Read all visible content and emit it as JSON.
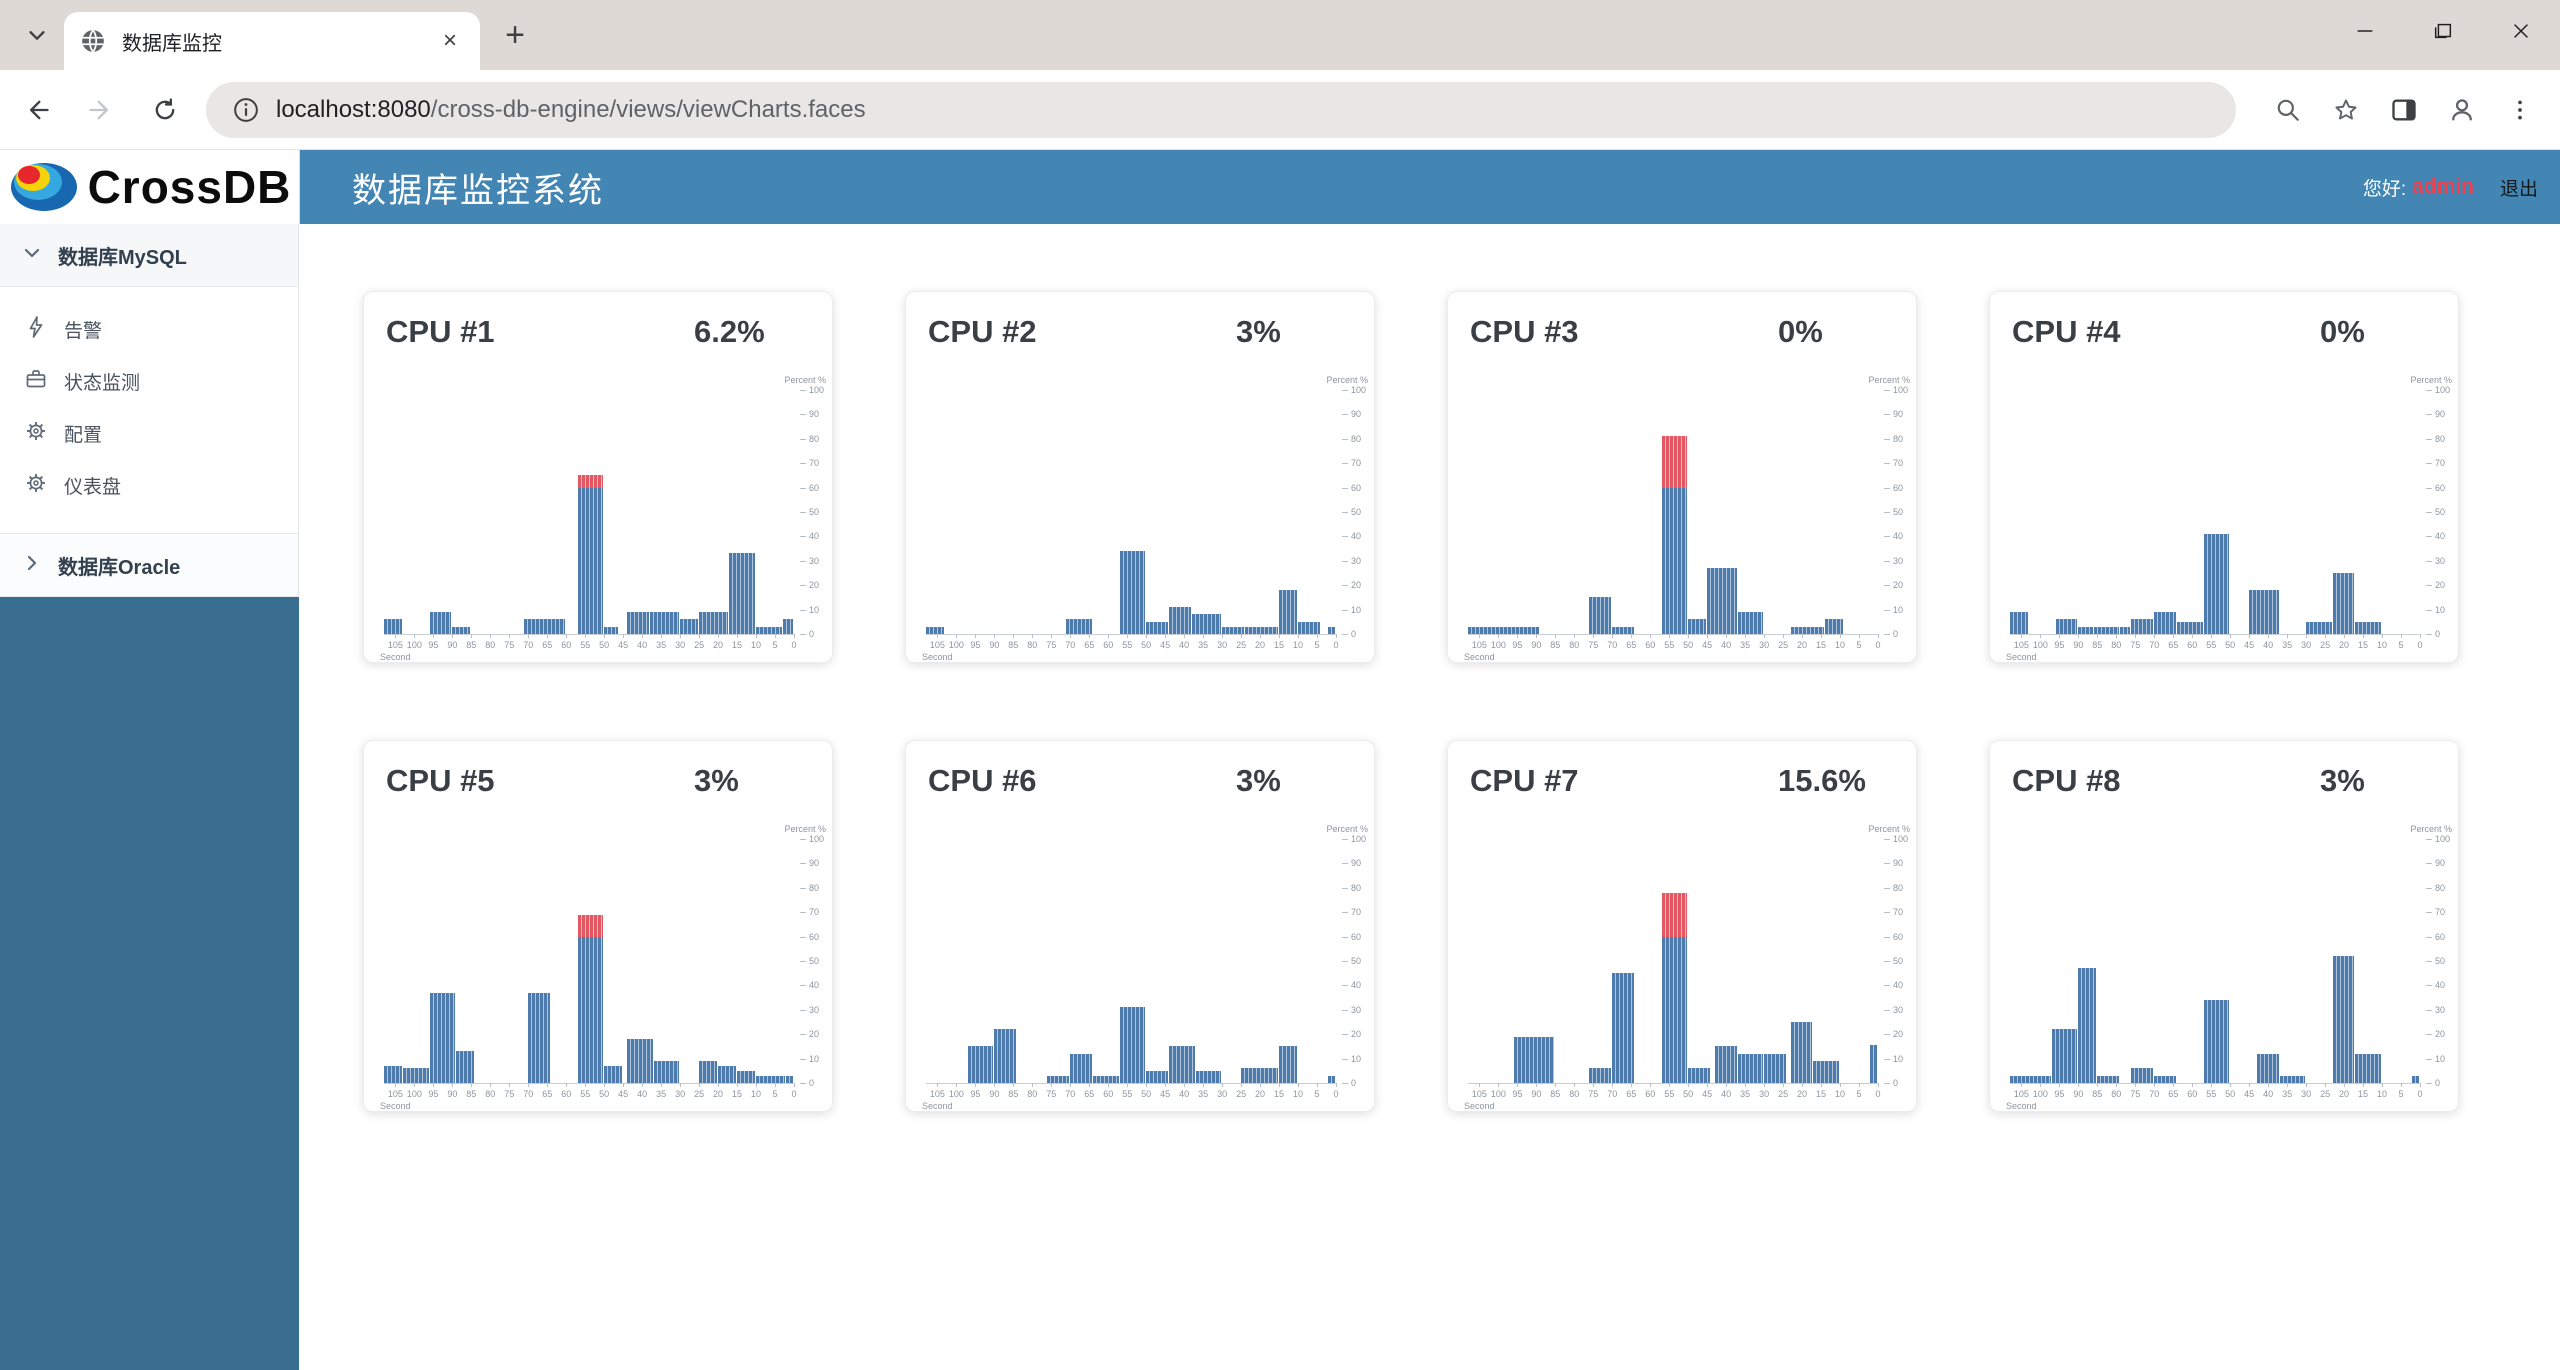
{
  "browser": {
    "tab_title": "数据库监控",
    "url_host": "localhost:8080",
    "url_path": "/cross-db-engine/views/viewCharts.faces",
    "new_tab_label": "+",
    "minimize_label": "–",
    "close_label": "×"
  },
  "header": {
    "logo_text": "CrossDB",
    "title": "数据库监控系统",
    "greeting_label": "您好:",
    "username": "admin",
    "logout_label": "退出"
  },
  "sidebar": {
    "groups": [
      {
        "label": "数据库MySQL",
        "expanded": true,
        "items": [
          {
            "icon": "lightning-icon",
            "label": "告警"
          },
          {
            "icon": "briefcase-icon",
            "label": "状态监测"
          },
          {
            "icon": "gear-icon",
            "label": "配置"
          },
          {
            "icon": "gear-icon",
            "label": "仪表盘"
          }
        ]
      },
      {
        "label": "数据库Oracle",
        "expanded": false,
        "items": []
      }
    ]
  },
  "colors": {
    "header_blue": "#4386b4",
    "sidebar_dark": "#3a6e90",
    "bar_blue": "#4d7bac",
    "bar_red": "#e25863",
    "username_red": "#f0414d"
  },
  "chart_data": [
    {
      "type": "bar",
      "title": "CPU #1",
      "current_value": "6.2%",
      "xlabel": "Second",
      "ylabel": "Percent %",
      "ylim": [
        0,
        100
      ],
      "threshold": 60,
      "x_ticks": [
        105,
        100,
        95,
        90,
        85,
        80,
        75,
        70,
        65,
        60,
        55,
        50,
        45,
        40,
        35,
        30,
        25,
        20,
        15,
        10,
        5,
        0
      ],
      "y_ticks": [
        0,
        10,
        20,
        30,
        40,
        50,
        60,
        70,
        80,
        90,
        100
      ],
      "x_range_seconds_ago": [
        108,
        0
      ],
      "bars": [
        {
          "from_s": 108,
          "to_s": 103,
          "value": 6
        },
        {
          "from_s": 96,
          "to_s": 90,
          "value": 9
        },
        {
          "from_s": 90,
          "to_s": 85,
          "value": 3
        },
        {
          "from_s": 71,
          "to_s": 60,
          "value": 6
        },
        {
          "from_s": 57,
          "to_s": 50,
          "value": 65
        },
        {
          "from_s": 50,
          "to_s": 46,
          "value": 3
        },
        {
          "from_s": 44,
          "to_s": 38,
          "value": 9
        },
        {
          "from_s": 38,
          "to_s": 30,
          "value": 9
        },
        {
          "from_s": 30,
          "to_s": 25,
          "value": 6
        },
        {
          "from_s": 25,
          "to_s": 17,
          "value": 9
        },
        {
          "from_s": 17,
          "to_s": 10,
          "value": 33
        },
        {
          "from_s": 10,
          "to_s": 3,
          "value": 3
        },
        {
          "from_s": 3,
          "to_s": 0,
          "value": 6
        }
      ]
    },
    {
      "type": "bar",
      "title": "CPU #2",
      "current_value": "3%",
      "xlabel": "Second",
      "ylabel": "Percent %",
      "ylim": [
        0,
        100
      ],
      "threshold": 60,
      "x_ticks": [
        105,
        100,
        95,
        90,
        85,
        80,
        75,
        70,
        65,
        60,
        55,
        50,
        45,
        40,
        35,
        30,
        25,
        20,
        15,
        10,
        5,
        0
      ],
      "y_ticks": [
        0,
        10,
        20,
        30,
        40,
        50,
        60,
        70,
        80,
        90,
        100
      ],
      "x_range_seconds_ago": [
        108,
        0
      ],
      "bars": [
        {
          "from_s": 108,
          "to_s": 103,
          "value": 3
        },
        {
          "from_s": 71,
          "to_s": 64,
          "value": 6
        },
        {
          "from_s": 57,
          "to_s": 50,
          "value": 34
        },
        {
          "from_s": 50,
          "to_s": 44,
          "value": 5
        },
        {
          "from_s": 44,
          "to_s": 38,
          "value": 11
        },
        {
          "from_s": 38,
          "to_s": 30,
          "value": 8
        },
        {
          "from_s": 30,
          "to_s": 24,
          "value": 3
        },
        {
          "from_s": 24,
          "to_s": 15,
          "value": 3
        },
        {
          "from_s": 15,
          "to_s": 10,
          "value": 18
        },
        {
          "from_s": 10,
          "to_s": 4,
          "value": 5
        },
        {
          "from_s": 2,
          "to_s": 0,
          "value": 3
        }
      ]
    },
    {
      "type": "bar",
      "title": "CPU #3",
      "current_value": "0%",
      "xlabel": "Second",
      "ylabel": "Percent %",
      "ylim": [
        0,
        100
      ],
      "threshold": 60,
      "x_ticks": [
        105,
        100,
        95,
        90,
        85,
        80,
        75,
        70,
        65,
        60,
        55,
        50,
        45,
        40,
        35,
        30,
        25,
        20,
        15,
        10,
        5,
        0
      ],
      "y_ticks": [
        0,
        10,
        20,
        30,
        40,
        50,
        60,
        70,
        80,
        90,
        100
      ],
      "x_range_seconds_ago": [
        108,
        0
      ],
      "bars": [
        {
          "from_s": 108,
          "to_s": 89,
          "value": 3
        },
        {
          "from_s": 76,
          "to_s": 70,
          "value": 15
        },
        {
          "from_s": 70,
          "to_s": 64,
          "value": 3
        },
        {
          "from_s": 57,
          "to_s": 50,
          "value": 81
        },
        {
          "from_s": 50,
          "to_s": 45,
          "value": 6
        },
        {
          "from_s": 45,
          "to_s": 37,
          "value": 27
        },
        {
          "from_s": 37,
          "to_s": 30,
          "value": 9
        },
        {
          "from_s": 23,
          "to_s": 14,
          "value": 3
        },
        {
          "from_s": 14,
          "to_s": 9,
          "value": 6
        }
      ]
    },
    {
      "type": "bar",
      "title": "CPU #4",
      "current_value": "0%",
      "xlabel": "Second",
      "ylabel": "Percent %",
      "ylim": [
        0,
        100
      ],
      "threshold": 60,
      "x_ticks": [
        105,
        100,
        95,
        90,
        85,
        80,
        75,
        70,
        65,
        60,
        55,
        50,
        45,
        40,
        35,
        30,
        25,
        20,
        15,
        10,
        5,
        0
      ],
      "y_ticks": [
        0,
        10,
        20,
        30,
        40,
        50,
        60,
        70,
        80,
        90,
        100
      ],
      "x_range_seconds_ago": [
        108,
        0
      ],
      "bars": [
        {
          "from_s": 108,
          "to_s": 103,
          "value": 9
        },
        {
          "from_s": 96,
          "to_s": 90,
          "value": 6
        },
        {
          "from_s": 90,
          "to_s": 86,
          "value": 3
        },
        {
          "from_s": 86,
          "to_s": 79,
          "value": 3
        },
        {
          "from_s": 79,
          "to_s": 76,
          "value": 3
        },
        {
          "from_s": 76,
          "to_s": 70,
          "value": 6
        },
        {
          "from_s": 70,
          "to_s": 64,
          "value": 9
        },
        {
          "from_s": 64,
          "to_s": 57,
          "value": 5
        },
        {
          "from_s": 57,
          "to_s": 50,
          "value": 41
        },
        {
          "from_s": 45,
          "to_s": 37,
          "value": 18
        },
        {
          "from_s": 30,
          "to_s": 23,
          "value": 5
        },
        {
          "from_s": 23,
          "to_s": 17,
          "value": 25
        },
        {
          "from_s": 17,
          "to_s": 10,
          "value": 5
        }
      ]
    },
    {
      "type": "bar",
      "title": "CPU #5",
      "current_value": "3%",
      "xlabel": "Second",
      "ylabel": "Percent %",
      "ylim": [
        0,
        100
      ],
      "threshold": 60,
      "x_ticks": [
        105,
        100,
        95,
        90,
        85,
        80,
        75,
        70,
        65,
        60,
        55,
        50,
        45,
        40,
        35,
        30,
        25,
        20,
        15,
        10,
        5,
        0
      ],
      "y_ticks": [
        0,
        10,
        20,
        30,
        40,
        50,
        60,
        70,
        80,
        90,
        100
      ],
      "x_range_seconds_ago": [
        108,
        0
      ],
      "bars": [
        {
          "from_s": 108,
          "to_s": 103,
          "value": 7
        },
        {
          "from_s": 103,
          "to_s": 96,
          "value": 6
        },
        {
          "from_s": 96,
          "to_s": 89,
          "value": 37
        },
        {
          "from_s": 89,
          "to_s": 84,
          "value": 13
        },
        {
          "from_s": 70,
          "to_s": 64,
          "value": 37
        },
        {
          "from_s": 57,
          "to_s": 50,
          "value": 69
        },
        {
          "from_s": 50,
          "to_s": 45,
          "value": 7
        },
        {
          "from_s": 44,
          "to_s": 37,
          "value": 18
        },
        {
          "from_s": 37,
          "to_s": 30,
          "value": 9
        },
        {
          "from_s": 25,
          "to_s": 20,
          "value": 9
        },
        {
          "from_s": 20,
          "to_s": 15,
          "value": 7
        },
        {
          "from_s": 15,
          "to_s": 10,
          "value": 5
        },
        {
          "from_s": 10,
          "to_s": 2,
          "value": 3
        },
        {
          "from_s": 2,
          "to_s": 0,
          "value": 3
        }
      ]
    },
    {
      "type": "bar",
      "title": "CPU #6",
      "current_value": "3%",
      "xlabel": "Second",
      "ylabel": "Percent %",
      "ylim": [
        0,
        100
      ],
      "threshold": 60,
      "x_ticks": [
        105,
        100,
        95,
        90,
        85,
        80,
        75,
        70,
        65,
        60,
        55,
        50,
        45,
        40,
        35,
        30,
        25,
        20,
        15,
        10,
        5,
        0
      ],
      "y_ticks": [
        0,
        10,
        20,
        30,
        40,
        50,
        60,
        70,
        80,
        90,
        100
      ],
      "x_range_seconds_ago": [
        108,
        0
      ],
      "bars": [
        {
          "from_s": 97,
          "to_s": 90,
          "value": 15
        },
        {
          "from_s": 90,
          "to_s": 84,
          "value": 22
        },
        {
          "from_s": 76,
          "to_s": 70,
          "value": 3
        },
        {
          "from_s": 70,
          "to_s": 64,
          "value": 12
        },
        {
          "from_s": 64,
          "to_s": 57,
          "value": 3
        },
        {
          "from_s": 57,
          "to_s": 50,
          "value": 31
        },
        {
          "from_s": 50,
          "to_s": 44,
          "value": 5
        },
        {
          "from_s": 44,
          "to_s": 37,
          "value": 15
        },
        {
          "from_s": 37,
          "to_s": 30,
          "value": 5
        },
        {
          "from_s": 25,
          "to_s": 15,
          "value": 6
        },
        {
          "from_s": 15,
          "to_s": 10,
          "value": 15
        },
        {
          "from_s": 2,
          "to_s": 0,
          "value": 3
        }
      ]
    },
    {
      "type": "bar",
      "title": "CPU #7",
      "current_value": "15.6%",
      "xlabel": "Second",
      "ylabel": "Percent %",
      "ylim": [
        0,
        100
      ],
      "threshold": 60,
      "x_ticks": [
        105,
        100,
        95,
        90,
        85,
        80,
        75,
        70,
        65,
        60,
        55,
        50,
        45,
        40,
        35,
        30,
        25,
        20,
        15,
        10,
        5,
        0
      ],
      "y_ticks": [
        0,
        10,
        20,
        30,
        40,
        50,
        60,
        70,
        80,
        90,
        100
      ],
      "x_range_seconds_ago": [
        108,
        0
      ],
      "bars": [
        {
          "from_s": 96,
          "to_s": 85,
          "value": 19
        },
        {
          "from_s": 76,
          "to_s": 70,
          "value": 6
        },
        {
          "from_s": 70,
          "to_s": 64,
          "value": 45
        },
        {
          "from_s": 57,
          "to_s": 50,
          "value": 78
        },
        {
          "from_s": 50,
          "to_s": 44,
          "value": 6
        },
        {
          "from_s": 43,
          "to_s": 37,
          "value": 15
        },
        {
          "from_s": 37,
          "to_s": 30,
          "value": 12
        },
        {
          "from_s": 30,
          "to_s": 24,
          "value": 12
        },
        {
          "from_s": 23,
          "to_s": 17,
          "value": 25
        },
        {
          "from_s": 17,
          "to_s": 10,
          "value": 9
        },
        {
          "from_s": 2,
          "to_s": 0,
          "value": 15.6
        }
      ]
    },
    {
      "type": "bar",
      "title": "CPU #8",
      "current_value": "3%",
      "xlabel": "Second",
      "ylabel": "Percent %",
      "ylim": [
        0,
        100
      ],
      "threshold": 60,
      "x_ticks": [
        105,
        100,
        95,
        90,
        85,
        80,
        75,
        70,
        65,
        60,
        55,
        50,
        45,
        40,
        35,
        30,
        25,
        20,
        15,
        10,
        5,
        0
      ],
      "y_ticks": [
        0,
        10,
        20,
        30,
        40,
        50,
        60,
        70,
        80,
        90,
        100
      ],
      "x_range_seconds_ago": [
        108,
        0
      ],
      "bars": [
        {
          "from_s": 108,
          "to_s": 97,
          "value": 3
        },
        {
          "from_s": 97,
          "to_s": 90,
          "value": 22
        },
        {
          "from_s": 90,
          "to_s": 85,
          "value": 47
        },
        {
          "from_s": 85,
          "to_s": 79,
          "value": 3
        },
        {
          "from_s": 76,
          "to_s": 70,
          "value": 6
        },
        {
          "from_s": 70,
          "to_s": 64,
          "value": 3
        },
        {
          "from_s": 57,
          "to_s": 50,
          "value": 34
        },
        {
          "from_s": 43,
          "to_s": 37,
          "value": 12
        },
        {
          "from_s": 37,
          "to_s": 30,
          "value": 3
        },
        {
          "from_s": 23,
          "to_s": 17,
          "value": 52
        },
        {
          "from_s": 17,
          "to_s": 10,
          "value": 12
        },
        {
          "from_s": 2,
          "to_s": 0,
          "value": 3
        }
      ]
    }
  ]
}
